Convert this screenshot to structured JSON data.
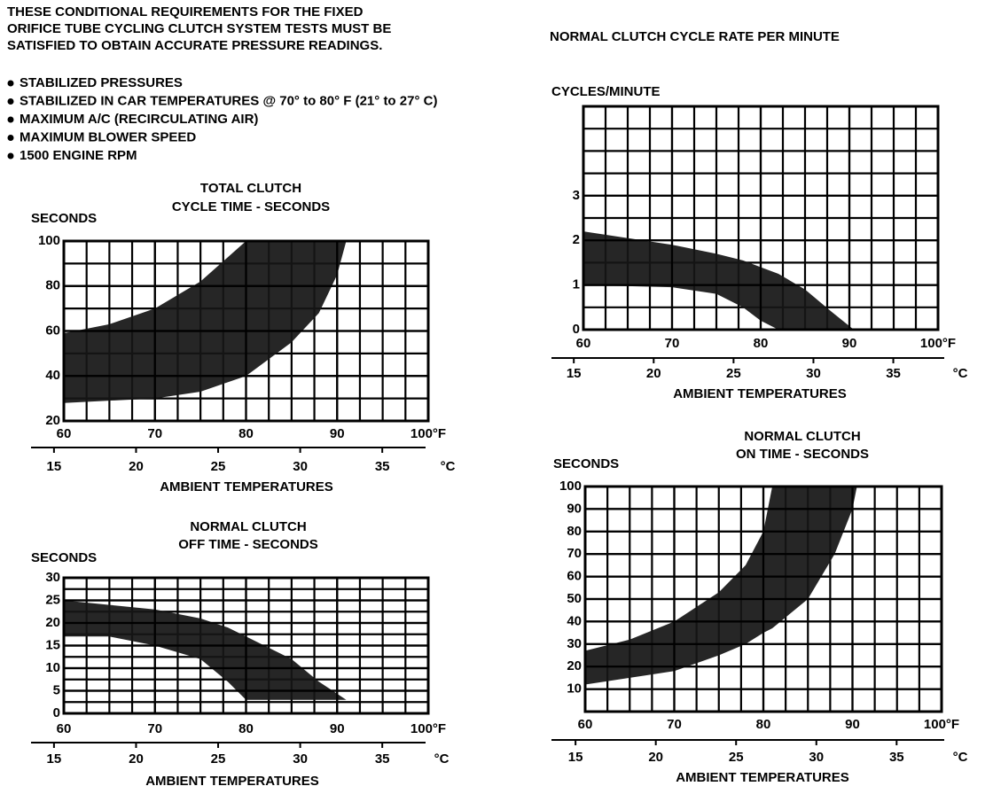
{
  "intro": [
    "THESE CONDITIONAL REQUIREMENTS FOR THE FIXED",
    "ORIFICE TUBE CYCLING CLUTCH SYSTEM TESTS MUST BE",
    "SATISFIED TO OBTAIN ACCURATE PRESSURE READINGS."
  ],
  "bullets": [
    "STABILIZED PRESSURES",
    "STABILIZED IN CAR TEMPERATURES @ 70° to 80° F (21° to 27° C)",
    "MAXIMUM A/C (RECIRCULATING AIR)",
    "MAXIMUM BLOWER SPEED",
    "1500 ENGINE RPM"
  ],
  "chart_data": [
    {
      "type": "band",
      "title": [
        "TOTAL CLUTCH",
        "CYCLE TIME - SECONDS"
      ],
      "ylabel": "SECONDS",
      "xlabel": "AMBIENT TEMPERATURES",
      "x": [
        60,
        65,
        70,
        75,
        80,
        85,
        88,
        90,
        91
      ],
      "high": [
        59,
        63,
        70,
        82,
        100,
        100,
        100,
        100,
        100
      ],
      "low": [
        28,
        29,
        30,
        33,
        40,
        55,
        68,
        85,
        100
      ],
      "color": "#161616",
      "grid": true,
      "xlim": [
        60,
        100
      ],
      "xticks": [
        60,
        70,
        80,
        90,
        {
          "value": 100,
          "label": "100°F"
        }
      ],
      "ylim": [
        20,
        100
      ],
      "yticks": [
        20,
        40,
        60,
        80,
        100
      ],
      "x2lim": [
        15.6,
        37.8
      ],
      "x2ticks": [
        15,
        20,
        25,
        30,
        35
      ],
      "x2label": "°C"
    },
    {
      "type": "band",
      "title": [
        "NORMAL CLUTCH",
        "OFF TIME - SECONDS"
      ],
      "ylabel": "SECONDS",
      "xlabel": "AMBIENT TEMPERATURES",
      "x": [
        60,
        65,
        70,
        75,
        78,
        80,
        85,
        88,
        91
      ],
      "high": [
        25,
        24,
        23,
        21,
        19,
        17,
        12,
        7,
        3
      ],
      "low": [
        17,
        17,
        15,
        12,
        7,
        3,
        3,
        3,
        3
      ],
      "color": "#161616",
      "grid": true,
      "xlim": [
        60,
        100
      ],
      "xticks": [
        60,
        70,
        80,
        90,
        {
          "value": 100,
          "label": "100°F"
        }
      ],
      "ylim": [
        0,
        30
      ],
      "yticks": [
        0,
        5,
        10,
        15,
        20,
        25,
        30
      ],
      "x2lim": [
        15.6,
        37.8
      ],
      "x2ticks": [
        15,
        20,
        25,
        30,
        35
      ],
      "x2label": "°C"
    },
    {
      "type": "band",
      "title": [
        "NORMAL CLUTCH CYCLE RATE PER MINUTE"
      ],
      "ylabel": "CYCLES/MINUTE",
      "xlabel": "AMBIENT TEMPERATURES",
      "x": [
        60,
        70,
        75,
        78,
        80,
        82,
        85,
        88,
        90.5
      ],
      "high": [
        2.2,
        1.9,
        1.7,
        1.55,
        1.4,
        1.25,
        0.9,
        0.4,
        0
      ],
      "low": [
        1.0,
        0.95,
        0.8,
        0.5,
        0.2,
        0,
        0,
        0,
        0
      ],
      "color": "#161616",
      "grid": true,
      "xlim": [
        60,
        100
      ],
      "xticks": [
        60,
        70,
        80,
        90,
        {
          "value": 100,
          "label": "100°F"
        }
      ],
      "ylim": [
        0,
        5
      ],
      "yticks": [
        0,
        1,
        2,
        3
      ],
      "x2lim": [
        15.6,
        37.8
      ],
      "x2ticks": [
        15,
        20,
        25,
        30,
        35
      ],
      "x2label": "°C"
    },
    {
      "type": "band",
      "title": [
        "NORMAL CLUTCH",
        "ON TIME - SECONDS"
      ],
      "ylabel": "SECONDS",
      "xlabel": "AMBIENT TEMPERATURES",
      "x": [
        60,
        65,
        70,
        75,
        78,
        80,
        81,
        85,
        88,
        90,
        90.5
      ],
      "high": [
        27,
        32,
        40,
        53,
        65,
        80,
        100,
        100,
        100,
        100,
        100
      ],
      "low": [
        12,
        15,
        18,
        25,
        30,
        35,
        37,
        50,
        70,
        90,
        100
      ],
      "color": "#161616",
      "grid": true,
      "xlim": [
        60,
        100
      ],
      "xticks": [
        60,
        70,
        80,
        90,
        {
          "value": 100,
          "label": "100°F"
        }
      ],
      "ylim": [
        0,
        100
      ],
      "yticks": [
        10,
        20,
        30,
        40,
        50,
        60,
        70,
        80,
        90,
        100
      ],
      "x2lim": [
        15.6,
        37.8
      ],
      "x2ticks": [
        15,
        20,
        25,
        30,
        35
      ],
      "x2label": "°C"
    }
  ]
}
